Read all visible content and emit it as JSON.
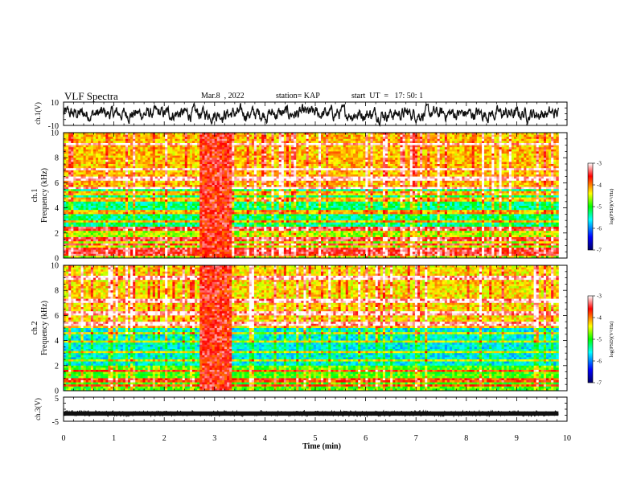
{
  "header": {
    "title": "VLF Spectra",
    "date": "Mar.8  , 2022",
    "station": "station= KAP",
    "start": "start  UT  =   17: 50: 1"
  },
  "colors": {
    "trace": "#111111",
    "colormap": [
      "#000066",
      "#0000ff",
      "#00ffff",
      "#00ff00",
      "#ffff00",
      "#ff0000",
      "#ffffff"
    ]
  },
  "chart_data": [
    {
      "type": "line",
      "name": "ch1-waveform",
      "ylabel": "ch.1(V)",
      "ytick_labels": [
        "10",
        "-10"
      ],
      "ylim": [
        -10,
        10
      ],
      "xlim": [
        0,
        10
      ],
      "data_xmax": 9.83,
      "envelope": {
        "center": 0,
        "amplitude": 7
      }
    },
    {
      "type": "heatmap",
      "name": "ch1-spectrogram",
      "ylabel": "ch.1\nFrequency  (kHz)",
      "ytick_labels": [
        "0",
        "2",
        "4",
        "6",
        "8",
        "10"
      ],
      "ylim": [
        0,
        10
      ],
      "xlim": [
        0,
        10
      ],
      "data_xmax": 9.83,
      "colorbar": {
        "label": "log(PSD)(V²/Hz)",
        "range": [
          -7,
          -3
        ],
        "tick_labels": [
          "-3",
          "-4",
          "-5",
          "-6",
          "-7"
        ]
      },
      "features": {
        "broadband_burst_min": [
          2.7,
          3.35
        ],
        "quiet_band_khz": [
          2.5,
          5.5
        ],
        "quiet_band_level": -5.3,
        "high_band_level": -4.2,
        "low_band_level": -4.6,
        "narrowband_lines_khz": [
          0.3,
          0.7,
          1.1,
          1.5,
          2.3,
          2.9,
          3.7,
          4.7,
          5.2,
          5.6,
          6.3,
          7.1,
          9.1
        ]
      }
    },
    {
      "type": "heatmap",
      "name": "ch2-spectrogram",
      "ylabel": "ch.2\nFrequency  (kHz)",
      "ytick_labels": [
        "0",
        "2",
        "4",
        "6",
        "8",
        "10"
      ],
      "ylim": [
        0,
        10
      ],
      "xlim": [
        0,
        10
      ],
      "data_xmax": 9.83,
      "colorbar": {
        "label": "log(PSD)(V²/Hz)",
        "range": [
          -7,
          -3
        ],
        "tick_labels": [
          "-3",
          "-4",
          "-5",
          "-6",
          "-7"
        ]
      },
      "features": {
        "broadband_burst_min": [
          2.7,
          3.35
        ],
        "quiet_band_khz": [
          2.0,
          5.0
        ],
        "quiet_band_level": -5.6,
        "high_band_level": -4.3,
        "low_band_level": -4.9,
        "narrowband_lines_khz": [
          0.4,
          0.8,
          1.6,
          2.4,
          3.1,
          3.9,
          4.6,
          5.3,
          6.2,
          7.2,
          9.0
        ]
      }
    },
    {
      "type": "line",
      "name": "ch3-waveform",
      "ylabel": "ch.3(V)",
      "ytick_labels": [
        "5",
        "-5"
      ],
      "ylim": [
        -5,
        5
      ],
      "xlim": [
        0,
        10
      ],
      "data_xmax": 9.83,
      "envelope": {
        "center": -1.8,
        "amplitude": 0.3
      }
    }
  ],
  "xaxis": {
    "label": "Time  (min)",
    "tick_labels": [
      "0",
      "1",
      "2",
      "3",
      "4",
      "5",
      "6",
      "7",
      "8",
      "9",
      "10"
    ]
  }
}
